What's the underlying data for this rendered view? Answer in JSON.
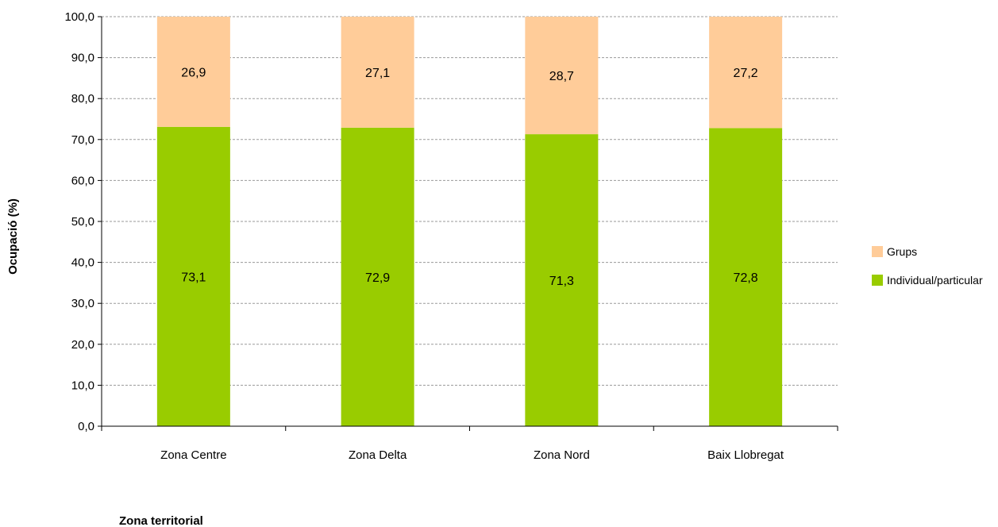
{
  "chart_data": {
    "type": "bar",
    "stacked": true,
    "xlabel": "Zona territorial",
    "ylabel": "Ocupació (%)",
    "ylim": [
      0,
      100
    ],
    "y_ticks": [
      "0,0",
      "10,0",
      "20,0",
      "30,0",
      "40,0",
      "50,0",
      "60,0",
      "70,0",
      "80,0",
      "90,0",
      "100,0"
    ],
    "categories": [
      "Zona Centre",
      "Zona Delta",
      "Zona Nord",
      "Baix Llobregat"
    ],
    "series": [
      {
        "name": "Individual/particular",
        "color": "#99cc00",
        "values": [
          73.1,
          72.9,
          71.3,
          72.8
        ],
        "labels": [
          "73,1",
          "72,9",
          "71,3",
          "72,8"
        ]
      },
      {
        "name": "Grups",
        "color": "#ffcc99",
        "values": [
          26.9,
          27.1,
          28.7,
          27.2
        ],
        "labels": [
          "26,9",
          "27,1",
          "28,7",
          "27,2"
        ]
      }
    ],
    "grid": "horizontal dashed",
    "legend": "right"
  }
}
